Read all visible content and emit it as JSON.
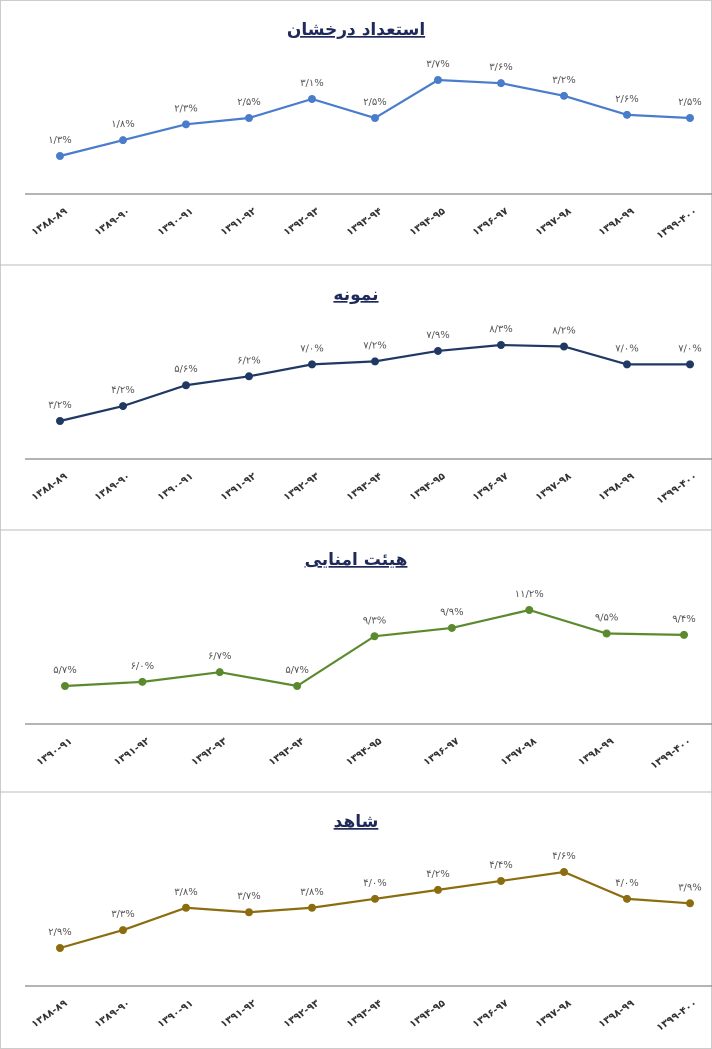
{
  "chart_data": [
    {
      "type": "line",
      "title": "استعداد درخشان",
      "color": "#4a7ccc",
      "categories": [
        "۱۳۸۸-۸۹",
        "۱۳۸۹-۹۰",
        "۱۳۹۰-۹۱",
        "۱۳۹۱-۹۲",
        "۱۳۹۲-۹۳",
        "۱۳۹۳-۹۴",
        "۱۳۹۴-۹۵",
        "۱۳۹۶-۹۷",
        "۱۳۹۷-۹۸",
        "۱۳۹۸-۹۹",
        "۱۳۹۹-۴۰۰"
      ],
      "values": [
        1.3,
        1.8,
        2.3,
        2.5,
        3.1,
        2.5,
        3.7,
        3.6,
        3.2,
        2.6,
        2.5
      ],
      "value_labels": [
        "۱/۳%",
        "۱/۸%",
        "۲/۳%",
        "۲/۵%",
        "۳/۱%",
        "۲/۵%",
        "۳/۷%",
        "۳/۶%",
        "۳/۲%",
        "۲/۶%",
        "۲/۵%"
      ]
    },
    {
      "type": "line",
      "title": "نمونه",
      "color": "#1f3864",
      "categories": [
        "۱۳۸۸-۸۹",
        "۱۳۸۹-۹۰",
        "۱۳۹۰-۹۱",
        "۱۳۹۱-۹۲",
        "۱۳۹۲-۹۳",
        "۱۳۹۳-۹۴",
        "۱۳۹۴-۹۵",
        "۱۳۹۶-۹۷",
        "۱۳۹۷-۹۸",
        "۱۳۹۸-۹۹",
        "۱۳۹۹-۴۰۰"
      ],
      "values": [
        3.2,
        4.2,
        5.6,
        6.2,
        7.0,
        7.2,
        7.9,
        8.3,
        8.2,
        7.0,
        7.0
      ],
      "value_labels": [
        "۳/۲%",
        "۴/۲%",
        "۵/۶%",
        "۶/۲%",
        "۷/۰%",
        "۷/۲%",
        "۷/۹%",
        "۸/۳%",
        "۸/۲%",
        "۷/۰%",
        "۷/۰%"
      ]
    },
    {
      "type": "line",
      "title": "هیئت امنایی",
      "color": "#5b8a2e",
      "categories": [
        "۱۳۹۰-۹۱",
        "۱۳۹۱-۹۲",
        "۱۳۹۲-۹۳",
        "۱۳۹۳-۹۴",
        "۱۳۹۴-۹۵",
        "۱۳۹۶-۹۷",
        "۱۳۹۷-۹۸",
        "۱۳۹۸-۹۹",
        "۱۳۹۹-۴۰۰"
      ],
      "values": [
        5.7,
        6.0,
        6.7,
        5.7,
        9.3,
        9.9,
        11.2,
        9.5,
        9.4
      ],
      "value_labels": [
        "۵/۷%",
        "۶/۰%",
        "۶/۷%",
        "۵/۷%",
        "۹/۳%",
        "۹/۹%",
        "۱۱/۲%",
        "۹/۵%",
        "۹/۴%"
      ]
    },
    {
      "type": "line",
      "title": "شاهد",
      "color": "#8b6d0f",
      "categories": [
        "۱۳۸۸-۸۹",
        "۱۳۸۹-۹۰",
        "۱۳۹۰-۹۱",
        "۱۳۹۱-۹۲",
        "۱۳۹۲-۹۳",
        "۱۳۹۳-۹۴",
        "۱۳۹۴-۹۵",
        "۱۳۹۶-۹۷",
        "۱۳۹۷-۹۸",
        "۱۳۹۸-۹۹",
        "۱۳۹۹-۴۰۰"
      ],
      "values": [
        2.9,
        3.3,
        3.8,
        3.7,
        3.8,
        4.0,
        4.2,
        4.4,
        4.6,
        4.0,
        3.9
      ],
      "value_labels": [
        "۲/۹%",
        "۳/۳%",
        "۳/۸%",
        "۳/۷%",
        "۳/۸%",
        "۴/۰%",
        "۴/۲%",
        "۴/۴%",
        "۴/۶%",
        "۴/۰%",
        "۳/۹%"
      ]
    }
  ]
}
